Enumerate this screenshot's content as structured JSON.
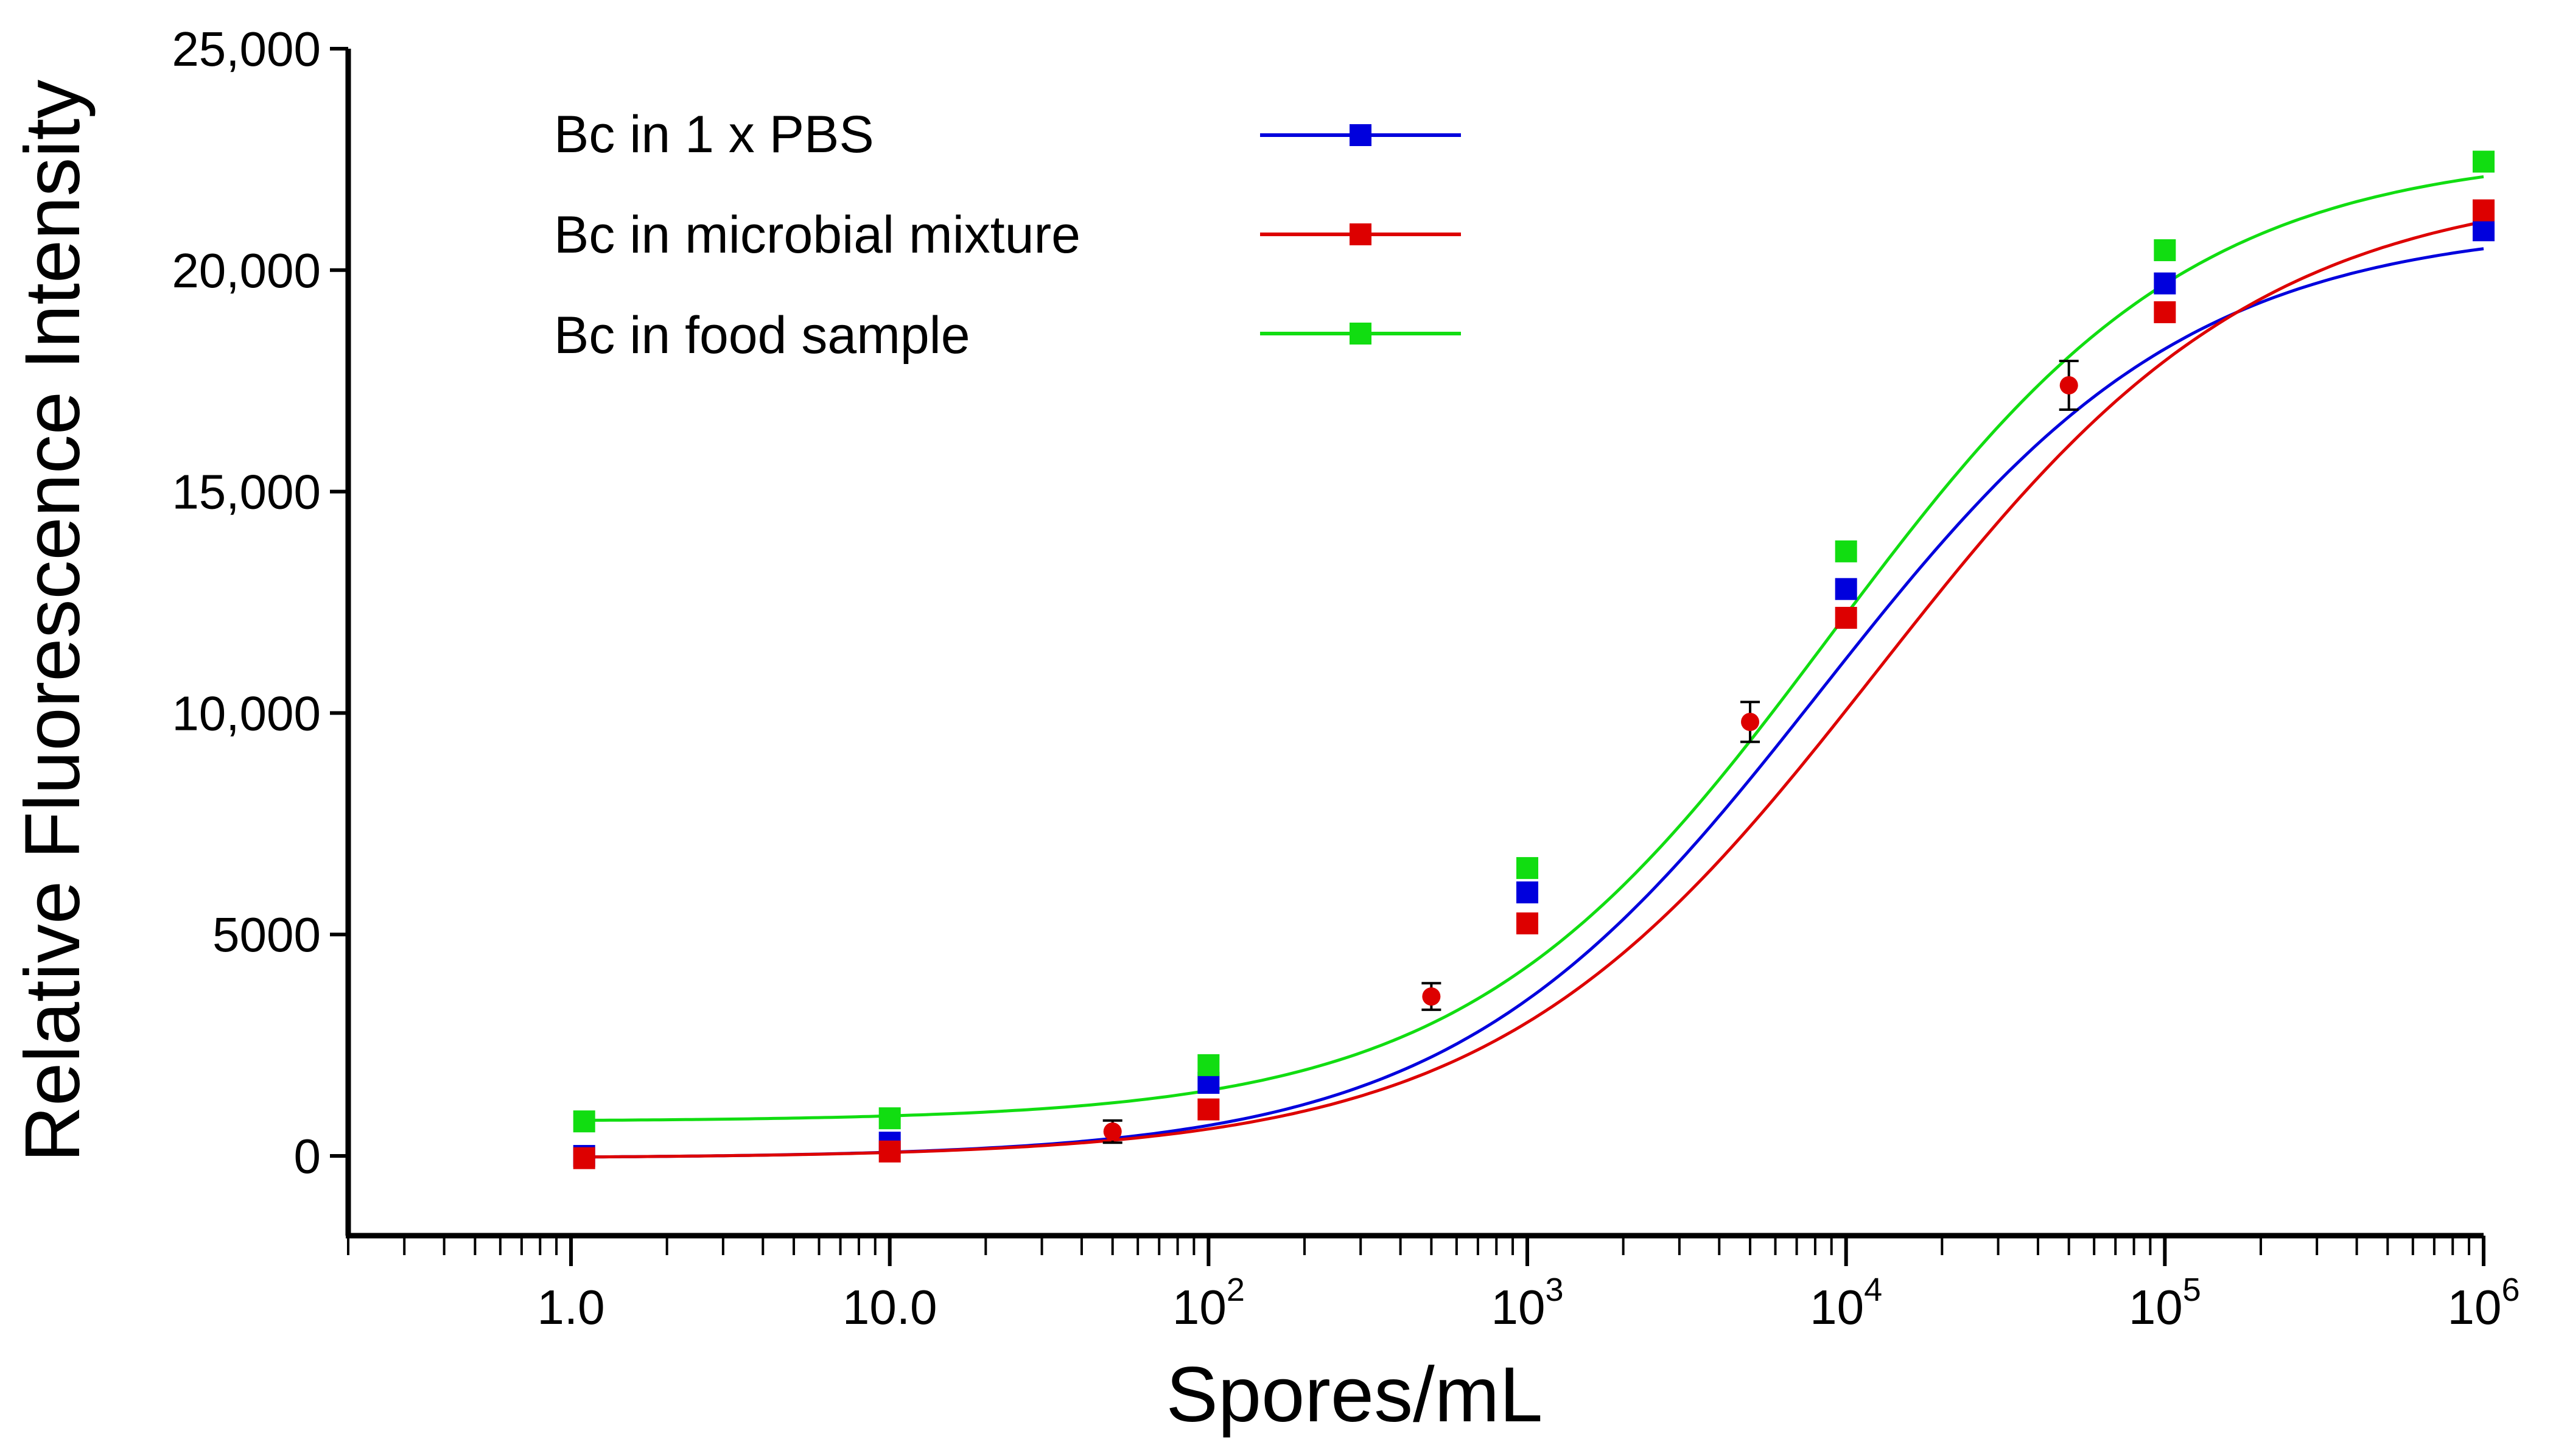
{
  "chart_data": {
    "type": "line",
    "title": "",
    "xlabel": "Spores/mL",
    "ylabel": "Relative Fluorescence Intensity",
    "x_scale": "log",
    "xlim": [
      0.2,
      1000000
    ],
    "ylim": [
      -1800,
      25000
    ],
    "y_ticks": [
      {
        "value": 0,
        "label": "0"
      },
      {
        "value": 5000,
        "label": "5000"
      },
      {
        "value": 10000,
        "label": "10,000"
      },
      {
        "value": 15000,
        "label": "15,000"
      },
      {
        "value": 20000,
        "label": "20,000"
      },
      {
        "value": 25000,
        "label": "25,000"
      }
    ],
    "x_ticks": [
      {
        "value": 1,
        "base": "1.0",
        "exp": ""
      },
      {
        "value": 10,
        "base": "10.0",
        "exp": ""
      },
      {
        "value": 100,
        "base": "10",
        "exp": "2"
      },
      {
        "value": 1000,
        "base": "10",
        "exp": "3"
      },
      {
        "value": 10000,
        "base": "10",
        "exp": "4"
      },
      {
        "value": 100000,
        "base": "10",
        "exp": "5"
      },
      {
        "value": 1000000,
        "base": "10",
        "exp": "6"
      }
    ],
    "legend_position": "top-left",
    "series": [
      {
        "name": "Bc in 1 x PBS",
        "color": "#0000dd",
        "marker": "square",
        "points": [
          [
            1.1,
            0
          ],
          [
            10,
            300
          ],
          [
            100,
            1650
          ],
          [
            1000,
            5950
          ],
          [
            10000,
            12800
          ],
          [
            100000,
            19700
          ],
          [
            1000000,
            20900
          ]
        ],
        "fit": {
          "bottom": -50,
          "top": 21050,
          "log_ec50": 3.92,
          "hill": 0.75
        }
      },
      {
        "name": "Bc in microbial mixture",
        "color": "#dd0000",
        "marker": "square",
        "points": [
          [
            1.1,
            -50
          ],
          [
            10,
            100
          ],
          [
            100,
            1050
          ],
          [
            1000,
            5250
          ],
          [
            10000,
            12150
          ],
          [
            100000,
            19050
          ],
          [
            1000000,
            21350
          ]
        ],
        "error_points": [
          {
            "x": 50,
            "y": 550,
            "err": 250
          },
          {
            "x": 500,
            "y": 3600,
            "err": 300
          },
          {
            "x": 5000,
            "y": 9800,
            "err": 450
          },
          {
            "x": 50000,
            "y": 17400,
            "err": 550
          }
        ],
        "fit": {
          "bottom": -50,
          "top": 22000,
          "log_ec50": 4.1,
          "hill": 0.72
        }
      },
      {
        "name": "Bc in food sample",
        "color": "#11dd11",
        "marker": "square",
        "points": [
          [
            1.1,
            780
          ],
          [
            10,
            850
          ],
          [
            100,
            2050
          ],
          [
            1000,
            6500
          ],
          [
            10000,
            13650
          ],
          [
            100000,
            20450
          ],
          [
            1000000,
            22450
          ]
        ],
        "fit": {
          "bottom": 780,
          "top": 22700,
          "log_ec50": 3.95,
          "hill": 0.76
        }
      }
    ]
  }
}
